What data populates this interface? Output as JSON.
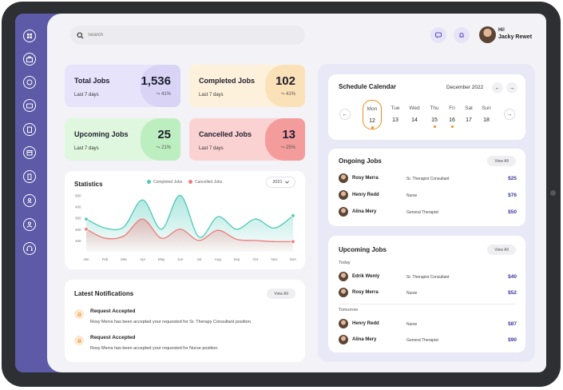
{
  "search": {
    "placeholder": "Search"
  },
  "user": {
    "greeting": "Hi!",
    "name": "Jacky Rewet"
  },
  "sidebar": {
    "icons": [
      "dashboard-icon",
      "briefcase-icon",
      "badge-icon",
      "wallet-icon",
      "clipboard-icon",
      "calendar-icon",
      "building-icon",
      "user-circle-icon",
      "users-icon",
      "headset-icon"
    ]
  },
  "stats": [
    {
      "title": "Total Jobs",
      "value": "1,536",
      "period": "Last 7 days",
      "change": "41%",
      "bg": "#e7e3fb",
      "deco": "#d9d3f6"
    },
    {
      "title": "Completed Jobs",
      "value": "102",
      "period": "Last 7 days",
      "change": "41%",
      "bg": "#fdf1dc",
      "deco": "#fbe1b7"
    },
    {
      "title": "Upcoming Jobs",
      "value": "25",
      "period": "Last 7 days",
      "change": "21%",
      "bg": "#def7de",
      "deco": "#bdeec0"
    },
    {
      "title": "Cancelled Jobs",
      "value": "13",
      "period": "Last 7 days",
      "change": "25%",
      "bg": "#fbd2d2",
      "deco": "#f49c9c"
    }
  ],
  "statistics": {
    "title": "Statistics",
    "year": "2021",
    "legend": [
      {
        "name": "Completed Jobs",
        "color": "#4cc9b8"
      },
      {
        "name": "Cancelled Jobs",
        "color": "#f07a7a"
      }
    ]
  },
  "chart_data": {
    "type": "area",
    "title": "Statistics",
    "categories": [
      "Jan",
      "Feb",
      "Mar",
      "Apr",
      "May",
      "Jun",
      "Jul",
      "Aug",
      "Sep",
      "Oct",
      "Nov",
      "Dec"
    ],
    "series": [
      {
        "name": "Completed Jobs",
        "color": "#4cc9b8",
        "values": [
          290,
          210,
          220,
          460,
          200,
          500,
          130,
          310,
          200,
          290,
          210,
          320
        ]
      },
      {
        "name": "Cancelled Jobs",
        "color": "#f07a7a",
        "values": [
          200,
          120,
          140,
          290,
          120,
          200,
          100,
          190,
          110,
          100,
          90,
          90
        ]
      }
    ],
    "y_ticks": [
      100,
      200,
      300,
      400,
      500
    ],
    "ylim": [
      0,
      560
    ],
    "grid": false,
    "legend": "top"
  },
  "notifications": {
    "title": "Latest Notifications",
    "view_all": "View All",
    "items": [
      {
        "title": "Request Accepted",
        "body": "Rosy Merra has been accepted your requested for Sr. Therapy Consultant position."
      },
      {
        "title": "Request Accepted",
        "body": "Rosy Merra has been accepted your requested for Nurse position."
      }
    ]
  },
  "calendar": {
    "title": "Schedule Calendar",
    "month": "December 2022",
    "days": [
      {
        "d": "Mon",
        "n": "12",
        "dot": true,
        "selected": true
      },
      {
        "d": "Tue",
        "n": "13",
        "dot": false,
        "selected": false
      },
      {
        "d": "Wed",
        "n": "14",
        "dot": false,
        "selected": false
      },
      {
        "d": "Thu",
        "n": "15",
        "dot": true,
        "selected": false
      },
      {
        "d": "Fri",
        "n": "16",
        "dot": true,
        "selected": false
      },
      {
        "d": "Sat",
        "n": "17",
        "dot": false,
        "selected": false
      },
      {
        "d": "Sun",
        "n": "18",
        "dot": false,
        "selected": false
      }
    ]
  },
  "ongoing": {
    "title": "Ongoing Jobs",
    "view_all": "View All",
    "rows": [
      {
        "name": "Rosy Merra",
        "role": "Sr. Therapist Consultant",
        "price": "$25"
      },
      {
        "name": "Henry Redd",
        "role": "Nurse",
        "price": "$76"
      },
      {
        "name": "Alina Mery",
        "role": "General Therapist",
        "price": "$50"
      }
    ]
  },
  "upcoming": {
    "title": "Upcoming Jobs",
    "view_all": "View All",
    "groups": [
      {
        "label": "Today",
        "rows": [
          {
            "name": "Edrik Wenly",
            "role": "Sr. Therapist Consultant",
            "price": "$40"
          },
          {
            "name": "Rosy Merra",
            "role": "Nurse",
            "price": "$52"
          }
        ]
      },
      {
        "label": "Tomorrow",
        "rows": [
          {
            "name": "Henry Redd",
            "role": "Nurse",
            "price": "$87"
          },
          {
            "name": "Alina Mery",
            "role": "General Therapist",
            "price": "$90"
          }
        ]
      }
    ]
  }
}
